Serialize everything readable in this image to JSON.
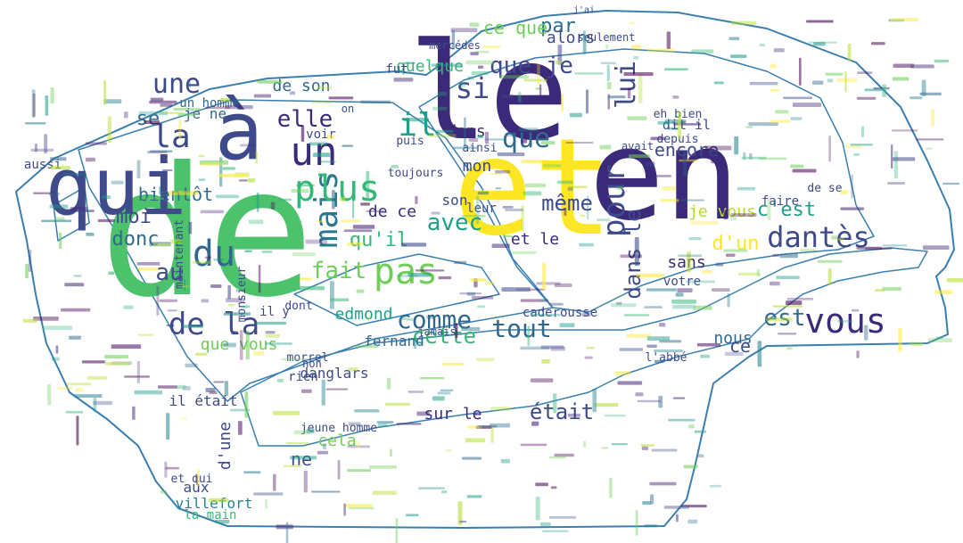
{
  "colors": {
    "outline": "#3a7fb0",
    "background": "#ffffff",
    "palette": [
      "#440154",
      "#482878",
      "#3e4a89",
      "#31688e",
      "#26828e",
      "#1f9e89",
      "#35b779",
      "#6ece58",
      "#b5de2b",
      "#fde725"
    ]
  },
  "words": [
    {
      "text": "de",
      "color": "#4cc26c"
    },
    {
      "text": "et",
      "color": "#fde725"
    },
    {
      "text": "le",
      "color": "#3b2a7a"
    },
    {
      "text": "en",
      "color": "#3b2a7a"
    },
    {
      "text": "à",
      "color": "#3e4a89"
    },
    {
      "text": "qui",
      "color": "#3e4a89"
    },
    {
      "text": "la",
      "color": "#3e4a89"
    },
    {
      "text": "pas",
      "color": "#6ece58"
    },
    {
      "text": "vous",
      "color": "#3b2a7a"
    },
    {
      "text": "dantès",
      "color": "#3e4a89"
    },
    {
      "text": "que",
      "color": "#31688e"
    },
    {
      "text": "un",
      "color": "#3b2a7a"
    },
    {
      "text": "mais",
      "color": "#2a788e"
    },
    {
      "text": "du",
      "color": "#31688e"
    },
    {
      "text": "plus",
      "color": "#35b779"
    },
    {
      "text": "comme",
      "color": "#31688e"
    },
    {
      "text": "tout",
      "color": "#31688e"
    },
    {
      "text": "pour",
      "color": "#3e4a89"
    },
    {
      "text": "lui",
      "color": "#3e4a89"
    },
    {
      "text": "il",
      "color": "#1f9e89"
    },
    {
      "text": "si",
      "color": "#3e4a89"
    },
    {
      "text": "que je",
      "color": "#3e4a89"
    },
    {
      "text": "une",
      "color": "#3e4a89"
    },
    {
      "text": "se",
      "color": "#31688e"
    },
    {
      "text": "elle",
      "color": "#3b2a7a"
    },
    {
      "text": "avec",
      "color": "#1f9e89"
    },
    {
      "text": "même",
      "color": "#3e4a89"
    },
    {
      "text": "dans le",
      "color": "#3e4a89"
    },
    {
      "text": "est",
      "color": "#31688e"
    },
    {
      "text": "cette",
      "color": "#35b779"
    },
    {
      "text": "donc",
      "color": "#31688e"
    },
    {
      "text": "moi",
      "color": "#3e4a89"
    },
    {
      "text": "au",
      "color": "#3e4a89"
    },
    {
      "text": "bientôt",
      "color": "#31688e"
    },
    {
      "text": "fait",
      "color": "#6ece58"
    },
    {
      "text": "qu'il",
      "color": "#35b779"
    },
    {
      "text": "de ce",
      "color": "#3b2a7a"
    },
    {
      "text": "par",
      "color": "#31688e"
    },
    {
      "text": "ce que",
      "color": "#6ece58"
    },
    {
      "text": "alors",
      "color": "#3e4a89"
    },
    {
      "text": "quelque",
      "color": "#35b779"
    },
    {
      "text": "encore",
      "color": "#3e4a89"
    },
    {
      "text": "c'est",
      "color": "#1f9e89"
    },
    {
      "text": "je vous",
      "color": "#b5de2b"
    },
    {
      "text": "d'un",
      "color": "#fde725"
    },
    {
      "text": "et le",
      "color": "#3b2a7a"
    },
    {
      "text": "sans",
      "color": "#3b2a7a"
    },
    {
      "text": "dans",
      "color": "#3b2a7a"
    },
    {
      "text": "mon",
      "color": "#3e4a89"
    },
    {
      "text": "son",
      "color": "#3e4a89"
    },
    {
      "text": "de son",
      "color": "#31688e"
    },
    {
      "text": "de la",
      "color": "#3e4a89"
    },
    {
      "text": "que vous",
      "color": "#6ece58"
    },
    {
      "text": "edmond",
      "color": "#1f9e89"
    },
    {
      "text": "fernand",
      "color": "#31688e"
    },
    {
      "text": "danglars",
      "color": "#3e4a89"
    },
    {
      "text": "était",
      "color": "#3e4a89"
    },
    {
      "text": "sur le",
      "color": "#3b2a7a"
    },
    {
      "text": "cela",
      "color": "#6ece58"
    },
    {
      "text": "ne",
      "color": "#3e4a89"
    },
    {
      "text": "d'une",
      "color": "#3e4a89"
    },
    {
      "text": "villefort",
      "color": "#26828e"
    },
    {
      "text": "la main",
      "color": "#35b779"
    },
    {
      "text": "aux",
      "color": "#3e4a89"
    },
    {
      "text": "et qui",
      "color": "#3e4a89"
    },
    {
      "text": "nous",
      "color": "#31688e"
    },
    {
      "text": "ce",
      "color": "#3e4a89"
    },
    {
      "text": "dit il",
      "color": "#3e4a89"
    },
    {
      "text": "caderousse",
      "color": "#3e4a89"
    },
    {
      "text": "jeune homme",
      "color": "#3e4a89"
    },
    {
      "text": "il était",
      "color": "#3e4a89"
    },
    {
      "text": "morrel",
      "color": "#3e4a89"
    },
    {
      "text": "rien",
      "color": "#3e4a89"
    },
    {
      "text": "l'abbé",
      "color": "#3e4a89"
    },
    {
      "text": "monsieur",
      "color": "#3e4a89"
    },
    {
      "text": "je ne",
      "color": "#31688e"
    },
    {
      "text": "un homme",
      "color": "#31688e"
    },
    {
      "text": "maintenant",
      "color": "#3e4a89"
    },
    {
      "text": "toujours",
      "color": "#3e4a89"
    },
    {
      "text": "depuis",
      "color": "#3e4a89"
    },
    {
      "text": "eh bien",
      "color": "#3e4a89"
    },
    {
      "text": "faire",
      "color": "#3e4a89"
    },
    {
      "text": "de se",
      "color": "#3e4a89"
    },
    {
      "text": "puis",
      "color": "#3e4a89"
    },
    {
      "text": "ainsi",
      "color": "#3e4a89"
    },
    {
      "text": "voir",
      "color": "#3e4a89"
    },
    {
      "text": "il y",
      "color": "#3e4a89"
    },
    {
      "text": "dont",
      "color": "#3e4a89"
    },
    {
      "text": "jamais",
      "color": "#3e4a89"
    },
    {
      "text": "votre",
      "color": "#3e4a89"
    },
    {
      "text": "aussi",
      "color": "#3e4a89"
    },
    {
      "text": "mercédès",
      "color": "#3e4a89"
    },
    {
      "text": "seulement",
      "color": "#3e4a89"
    },
    {
      "text": "fut",
      "color": "#3e4a89"
    },
    {
      "text": "on",
      "color": "#3e4a89"
    },
    {
      "text": "leur",
      "color": "#3e4a89"
    },
    {
      "text": "avait",
      "color": "#3e4a89"
    },
    {
      "text": "j'ai",
      "color": "#3e4a89"
    },
    {
      "text": "non",
      "color": "#3e4a89"
    }
  ]
}
